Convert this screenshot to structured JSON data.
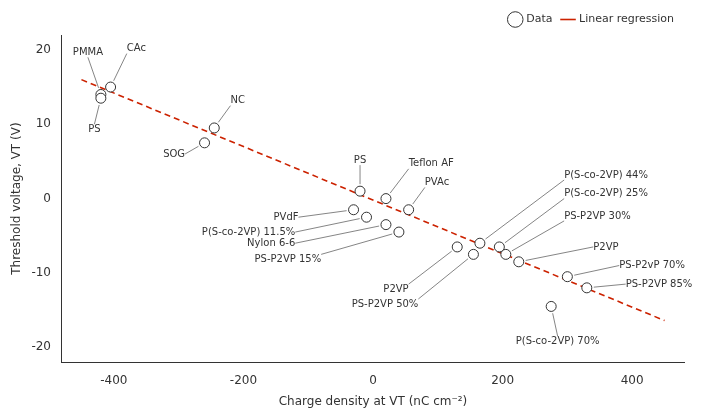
{
  "chart_data": {
    "type": "scatter",
    "xlabel": "Charge density at VT (nC cm⁻²)",
    "ylabel": "Threshold voltage, VT (V)",
    "series": [
      {
        "name": "Data",
        "type": "scatter",
        "marker": "o",
        "color": "#333333",
        "x": [
          -420,
          -405,
          -420,
          -245,
          -260,
          -20,
          20,
          55,
          -30,
          -10,
          20,
          40,
          130,
          155,
          165,
          195,
          205,
          225,
          300,
          330,
          275
        ],
        "y": [
          14.0,
          15.0,
          13.5,
          9.5,
          7.5,
          1.0,
          0.0,
          -1.5,
          -1.5,
          -2.5,
          -3.5,
          -4.5,
          -6.5,
          -7.5,
          -6.0,
          -6.5,
          -7.5,
          -8.5,
          -10.5,
          -12.0,
          -14.5
        ]
      },
      {
        "name": "Linear regression",
        "type": "line",
        "line_style": "dashed",
        "color": "#cc2200",
        "x": [
          -450,
          450
        ],
        "y": [
          16.0,
          -16.4
        ]
      }
    ],
    "annotations": [
      {
        "text": "PMMA",
        "x": -420,
        "y": 14.0,
        "text_x": -440,
        "text_y": 19.0
      },
      {
        "text": "CAc",
        "x": -405,
        "y": 15.0,
        "text_x": -380,
        "text_y": 19.5
      },
      {
        "text": "PS",
        "x": -420,
        "y": 13.5,
        "text_x": -430,
        "text_y": 10.0
      },
      {
        "text": "NC",
        "x": -245,
        "y": 9.5,
        "text_x": -220,
        "text_y": 12.5
      },
      {
        "text": "SOG",
        "x": -260,
        "y": 7.5,
        "text_x": -290,
        "text_y": 6.0
      },
      {
        "text": "PS",
        "x": -20,
        "y": 1.0,
        "text_x": -20,
        "text_y": 4.5
      },
      {
        "text": "Teflon AF",
        "x": 20,
        "y": 0.0,
        "text_x": 55,
        "text_y": 4.0
      },
      {
        "text": "PVAc",
        "x": 55,
        "y": -1.5,
        "text_x": 80,
        "text_y": 1.5
      },
      {
        "text": "PVdF",
        "x": -30,
        "y": -1.5,
        "text_x": -115,
        "text_y": -2.5
      },
      {
        "text": "P(S-co-2VP) 11.5%",
        "x": -10,
        "y": -2.5,
        "text_x": -120,
        "text_y": -4.5
      },
      {
        "text": "Nylon 6-6",
        "x": 20,
        "y": -3.5,
        "text_x": -120,
        "text_y": -6.0
      },
      {
        "text": "PS-P2VP 15%",
        "x": 40,
        "y": -4.5,
        "text_x": -80,
        "text_y": -7.5
      },
      {
        "text": "P2VP",
        "x": 130,
        "y": -6.5,
        "text_x": 55,
        "text_y": -11.5
      },
      {
        "text": "PS-P2VP 50%",
        "x": 155,
        "y": -7.5,
        "text_x": 70,
        "text_y": -13.5
      },
      {
        "text": "P(S-co-2VP) 44%",
        "x": 165,
        "y": -6.0,
        "text_x": 295,
        "text_y": 2.5
      },
      {
        "text": "P(S-co-2VP) 25%",
        "x": 195,
        "y": -6.5,
        "text_x": 295,
        "text_y": 0.0
      },
      {
        "text": "PS-P2VP 30%",
        "x": 205,
        "y": -7.5,
        "text_x": 295,
        "text_y": -3.0
      },
      {
        "text": "P2VP",
        "x": 225,
        "y": -8.5,
        "text_x": 340,
        "text_y": -6.5
      },
      {
        "text": "PS-P2vP 70%",
        "x": 300,
        "y": -10.5,
        "text_x": 380,
        "text_y": -9.0
      },
      {
        "text": "PS-P2VP 85%",
        "x": 330,
        "y": -12.0,
        "text_x": 390,
        "text_y": -11.5
      },
      {
        "text": "P(S-co-2VP) 70%",
        "x": 275,
        "y": -14.5,
        "text_x": 285,
        "text_y": -18.5
      }
    ],
    "xlim": [
      -480,
      480
    ],
    "ylim": [
      -22,
      22
    ],
    "xticks": [
      -400,
      -200,
      0,
      200,
      400
    ],
    "yticks": [
      -20,
      -10,
      0,
      10,
      20
    ],
    "grid": false,
    "legend": "upper right"
  }
}
